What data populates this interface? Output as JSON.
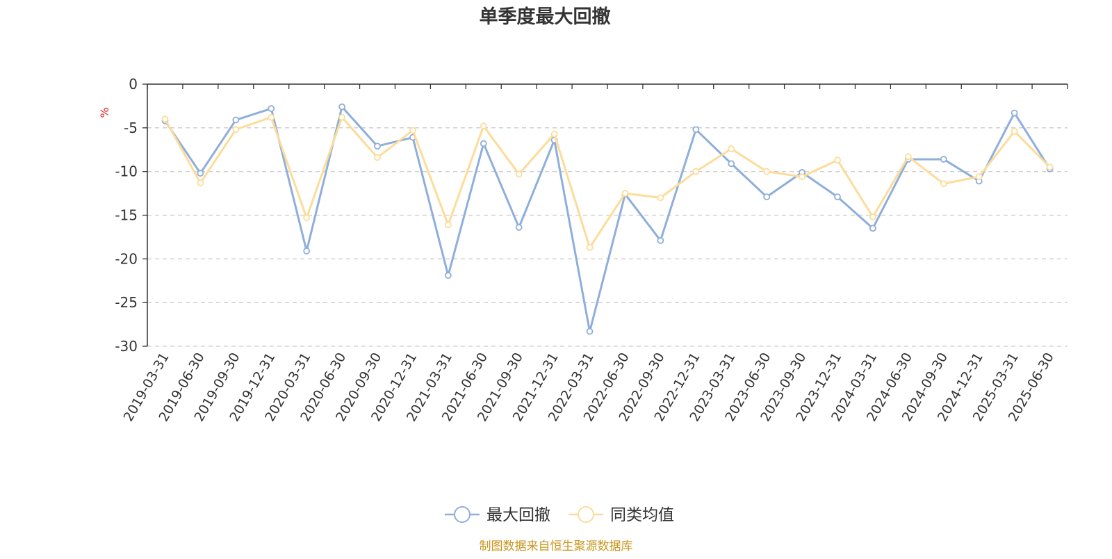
{
  "chart_data": {
    "type": "line",
    "title": "单季度最大回撤",
    "ylabel": "%",
    "xlabel": "",
    "ylim": [
      -30,
      0
    ],
    "yticks": [
      0,
      -5,
      -10,
      -15,
      -20,
      -25,
      -30
    ],
    "grid": true,
    "legend_position": "bottom-center",
    "categories": [
      "2019-03-31",
      "2019-06-30",
      "2019-09-30",
      "2019-12-31",
      "2020-03-31",
      "2020-06-30",
      "2020-09-30",
      "2020-12-31",
      "2021-03-31",
      "2021-06-30",
      "2021-09-30",
      "2021-12-31",
      "2022-03-31",
      "2022-06-30",
      "2022-09-30",
      "2022-12-31",
      "2023-03-31",
      "2023-06-30",
      "2023-09-30",
      "2023-12-31",
      "2024-03-31",
      "2024-06-30",
      "2024-09-30",
      "2024-12-31",
      "2025-03-31",
      "2025-06-30"
    ],
    "series": [
      {
        "name": "最大回撤",
        "color": "#8eaedb",
        "values": [
          -4.2,
          -10.2,
          -4.1,
          -2.8,
          -19.1,
          -2.6,
          -7.1,
          -6.1,
          -21.9,
          -6.8,
          -16.4,
          -6.4,
          -28.3,
          -12.6,
          -17.9,
          -5.2,
          -9.1,
          -12.9,
          -10.1,
          -12.9,
          -16.5,
          -8.6,
          -8.6,
          -11.1,
          -3.3,
          -9.7
        ]
      },
      {
        "name": "同类均值",
        "color": "#fcdc9a",
        "values": [
          -4.0,
          -11.3,
          -5.2,
          -3.8,
          -15.3,
          -3.8,
          -8.4,
          -5.3,
          -16.1,
          -4.8,
          -10.3,
          -5.7,
          -18.7,
          -12.5,
          -13.0,
          -10.0,
          -7.4,
          -10.0,
          -10.6,
          -8.7,
          -15.2,
          -8.3,
          -11.4,
          -10.6,
          -5.4,
          -9.5
        ]
      }
    ],
    "axis_color": "#333333",
    "tick_label_color": "#333333",
    "grid_color": "#cccccc",
    "unit_color": "#e02020"
  },
  "footer": {
    "source": "制图数据来自恒生聚源数据库",
    "color": "#c8961e"
  }
}
